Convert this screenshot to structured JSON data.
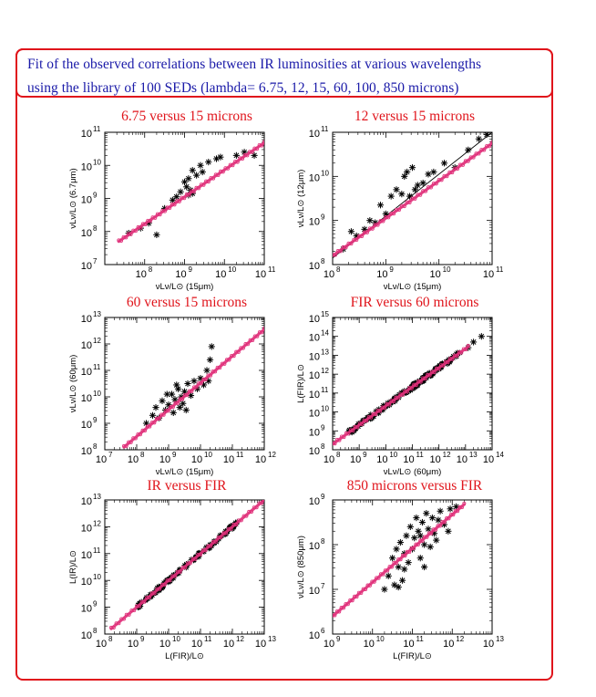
{
  "header": {
    "line1": "Fit of the observed correlations between IR luminosities at various wavelengths",
    "line2": "using the library of 100 SEDs (lambda= 6.75, 12, 15, 60, 100, 850 microns)"
  },
  "colors": {
    "frame": "#e0141b",
    "header_text": "#1a1aa8",
    "title": "#e0141b",
    "model": "#e0307a",
    "data": "#000000"
  },
  "chart_data": [
    {
      "type": "scatter",
      "title": "6.75 versus 15 microns",
      "xlabel": "νLν/L⊙ (15μm)",
      "ylabel": "νLν/L⊙ (6.7μm)",
      "xscale": "log",
      "yscale": "log",
      "xlim_exp": [
        7,
        11
      ],
      "ylim_exp": [
        7,
        11
      ],
      "xticks": [
        7,
        8,
        9,
        10,
        11
      ],
      "yticks": [
        7,
        8,
        9,
        10,
        11
      ],
      "show_xtick_labels": [
        false,
        true,
        true,
        true,
        true
      ],
      "model_line": {
        "x_exp": [
          7.35,
          11
        ],
        "y_exp": [
          7.7,
          10.68
        ]
      },
      "fit_line": null,
      "series": [
        {
          "kind": "observed",
          "marker": "asterisk",
          "points_log": [
            [
              7.6,
              7.95
            ],
            [
              7.9,
              8.1
            ],
            [
              8.1,
              8.25
            ],
            [
              8.3,
              7.9
            ],
            [
              8.5,
              8.7
            ],
            [
              8.7,
              8.95
            ],
            [
              8.8,
              9.05
            ],
            [
              8.9,
              9.2
            ],
            [
              9.0,
              9.5
            ],
            [
              9.05,
              9.35
            ],
            [
              9.1,
              9.6
            ],
            [
              9.15,
              9.25
            ],
            [
              9.2,
              9.85
            ],
            [
              9.3,
              9.7
            ],
            [
              9.4,
              10.0
            ],
            [
              9.45,
              9.8
            ],
            [
              9.6,
              10.1
            ],
            [
              9.8,
              10.2
            ],
            [
              9.9,
              10.25
            ],
            [
              10.3,
              10.3
            ],
            [
              10.5,
              10.4
            ],
            [
              10.75,
              10.3
            ],
            [
              9.1,
              9.1
            ],
            [
              9.2,
              9.15
            ]
          ]
        }
      ]
    },
    {
      "type": "scatter",
      "title": "12 versus 15 microns",
      "xlabel": "νLν/L⊙ (15μm)",
      "ylabel": "νLν/L⊙ (12μm)",
      "xscale": "log",
      "yscale": "log",
      "xlim_exp": [
        8,
        11
      ],
      "ylim_exp": [
        8,
        11
      ],
      "xticks": [
        8,
        9,
        10,
        11
      ],
      "yticks": [
        8,
        9,
        10,
        11
      ],
      "show_xtick_labels": [
        true,
        true,
        true,
        true
      ],
      "model_line": {
        "x_exp": [
          8,
          11
        ],
        "y_exp": [
          8.2,
          10.75
        ]
      },
      "fit_line": {
        "x_exp": [
          8,
          11
        ],
        "y_exp": [
          8.15,
          11.0
        ]
      },
      "series": [
        {
          "kind": "observed",
          "marker": "asterisk",
          "points_log": [
            [
              8.2,
              8.35
            ],
            [
              8.35,
              8.75
            ],
            [
              8.45,
              8.65
            ],
            [
              8.6,
              8.8
            ],
            [
              8.7,
              9.0
            ],
            [
              8.8,
              8.95
            ],
            [
              8.9,
              9.35
            ],
            [
              9.0,
              9.15
            ],
            [
              9.1,
              9.55
            ],
            [
              9.2,
              9.7
            ],
            [
              9.3,
              9.6
            ],
            [
              9.35,
              10.0
            ],
            [
              9.4,
              10.1
            ],
            [
              9.5,
              10.2
            ],
            [
              9.55,
              9.7
            ],
            [
              9.6,
              9.8
            ],
            [
              9.7,
              9.85
            ],
            [
              9.8,
              10.05
            ],
            [
              9.9,
              10.1
            ],
            [
              10.1,
              10.3
            ],
            [
              10.3,
              10.2
            ],
            [
              10.55,
              10.6
            ],
            [
              10.75,
              10.85
            ],
            [
              10.9,
              10.95
            ],
            [
              9.45,
              9.55
            ]
          ]
        }
      ]
    },
    {
      "type": "scatter",
      "title": "60 versus 15 microns",
      "xlabel": "νLν/L⊙ (15μm)",
      "ylabel": "νLν/L⊙ (60μm)",
      "xscale": "log",
      "yscale": "log",
      "xlim_exp": [
        7,
        12
      ],
      "ylim_exp": [
        8,
        13
      ],
      "xticks": [
        7,
        8,
        9,
        10,
        11,
        12
      ],
      "yticks": [
        8,
        9,
        10,
        11,
        12,
        13
      ],
      "show_xtick_labels": [
        true,
        true,
        true,
        true,
        true,
        true
      ],
      "model_line": {
        "x_exp": [
          7.6,
          12
        ],
        "y_exp": [
          8.1,
          12.55
        ]
      },
      "fit_line": null,
      "series": [
        {
          "kind": "observed",
          "marker": "asterisk",
          "points_log": [
            [
              8.3,
              9.0
            ],
            [
              8.5,
              9.3
            ],
            [
              8.6,
              9.6
            ],
            [
              8.7,
              9.2
            ],
            [
              8.8,
              9.85
            ],
            [
              8.9,
              9.5
            ],
            [
              9.0,
              9.7
            ],
            [
              9.1,
              10.1
            ],
            [
              9.15,
              9.4
            ],
            [
              9.2,
              9.9
            ],
            [
              9.3,
              10.3
            ],
            [
              9.35,
              9.6
            ],
            [
              9.4,
              10.0
            ],
            [
              9.5,
              10.2
            ],
            [
              9.55,
              9.5
            ],
            [
              9.6,
              10.5
            ],
            [
              9.7,
              10.05
            ],
            [
              9.8,
              10.6
            ],
            [
              9.9,
              10.3
            ],
            [
              10.0,
              10.7
            ],
            [
              10.1,
              10.45
            ],
            [
              10.2,
              11.0
            ],
            [
              10.25,
              10.6
            ],
            [
              10.3,
              11.4
            ],
            [
              10.35,
              11.9
            ],
            [
              8.95,
              10.1
            ],
            [
              9.25,
              10.45
            ],
            [
              9.45,
              9.75
            ]
          ]
        }
      ]
    },
    {
      "type": "scatter",
      "title": "FIR versus 60 microns",
      "xlabel": "νLν/L⊙ (60μm)",
      "ylabel": "L(FIR)/L⊙",
      "xscale": "log",
      "yscale": "log",
      "xlim_exp": [
        8,
        14
      ],
      "ylim_exp": [
        8,
        15
      ],
      "xticks": [
        8,
        9,
        10,
        11,
        12,
        13,
        14
      ],
      "yticks": [
        8,
        9,
        10,
        11,
        12,
        13,
        14,
        15
      ],
      "show_xtick_labels": [
        true,
        true,
        true,
        true,
        true,
        true,
        true
      ],
      "model_line": {
        "x_exp": [
          8,
          13.1
        ],
        "y_exp": [
          8.3,
          13.45
        ]
      },
      "fit_line": null,
      "series": [
        {
          "kind": "observed",
          "marker": "asterisk",
          "dense_band": true,
          "band": {
            "x_exp": [
              8.6,
              12.8
            ],
            "y_offset": 0.28,
            "scatter": 0.12,
            "count": 160
          },
          "points_log": [
            [
              13.6,
              14.0
            ],
            [
              13.3,
              13.7
            ],
            [
              13.1,
              13.4
            ]
          ]
        }
      ]
    },
    {
      "type": "scatter",
      "title": "IR versus FIR",
      "xlabel": "L(FIR)/L⊙",
      "ylabel": "L(IR)/L⊙",
      "xscale": "log",
      "yscale": "log",
      "xlim_exp": [
        8,
        13
      ],
      "ylim_exp": [
        8,
        13
      ],
      "xticks": [
        8,
        9,
        10,
        11,
        12,
        13
      ],
      "yticks": [
        8,
        9,
        10,
        11,
        12,
        13
      ],
      "show_xtick_labels": [
        true,
        true,
        true,
        true,
        true,
        true
      ],
      "model_line": {
        "x_exp": [
          8.2,
          13
        ],
        "y_exp": [
          8.2,
          13.0
        ]
      },
      "fit_line": null,
      "series": [
        {
          "kind": "observed",
          "marker": "asterisk",
          "dense_band": true,
          "band": {
            "x_exp": [
              8.9,
              12.2
            ],
            "y_offset": 0.16,
            "scatter": 0.08,
            "count": 120
          },
          "points_log": []
        }
      ]
    },
    {
      "type": "scatter",
      "title": "850 microns versus FIR",
      "xlabel": "L(FIR)/L⊙",
      "ylabel": "νLν/L⊙ (850μm)",
      "xscale": "log",
      "yscale": "log",
      "xlim_exp": [
        9,
        13
      ],
      "ylim_exp": [
        6,
        9
      ],
      "xticks": [
        9,
        10,
        11,
        12,
        13
      ],
      "yticks": [
        6,
        7,
        8,
        9
      ],
      "show_xtick_labels": [
        true,
        true,
        true,
        true,
        true
      ],
      "model_line": {
        "x_exp": [
          9,
          12.3
        ],
        "y_exp": [
          6.4,
          8.9
        ]
      },
      "fit_line": null,
      "series": [
        {
          "kind": "observed",
          "marker": "asterisk",
          "points_log": [
            [
              10.3,
              7.0
            ],
            [
              10.4,
              7.3
            ],
            [
              10.5,
              7.7
            ],
            [
              10.55,
              7.1
            ],
            [
              10.6,
              7.9
            ],
            [
              10.65,
              7.5
            ],
            [
              10.7,
              8.05
            ],
            [
              10.75,
              7.2
            ],
            [
              10.8,
              7.8
            ],
            [
              10.85,
              8.2
            ],
            [
              10.9,
              7.6
            ],
            [
              10.95,
              8.4
            ],
            [
              11.0,
              7.9
            ],
            [
              11.05,
              8.15
            ],
            [
              11.1,
              8.6
            ],
            [
              11.15,
              8.3
            ],
            [
              11.2,
              7.7
            ],
            [
              11.25,
              8.5
            ],
            [
              11.3,
              8.0
            ],
            [
              11.35,
              8.7
            ],
            [
              11.4,
              8.35
            ],
            [
              11.45,
              7.95
            ],
            [
              11.5,
              8.6
            ],
            [
              11.55,
              8.25
            ],
            [
              11.6,
              8.1
            ],
            [
              11.65,
              8.55
            ],
            [
              11.7,
              8.75
            ],
            [
              11.8,
              8.45
            ],
            [
              11.9,
              8.3
            ],
            [
              11.95,
              8.8
            ],
            [
              12.1,
              8.85
            ],
            [
              10.65,
              7.05
            ],
            [
              10.8,
              7.45
            ],
            [
              11.2,
              8.2
            ],
            [
              11.3,
              7.5
            ]
          ]
        }
      ]
    }
  ]
}
